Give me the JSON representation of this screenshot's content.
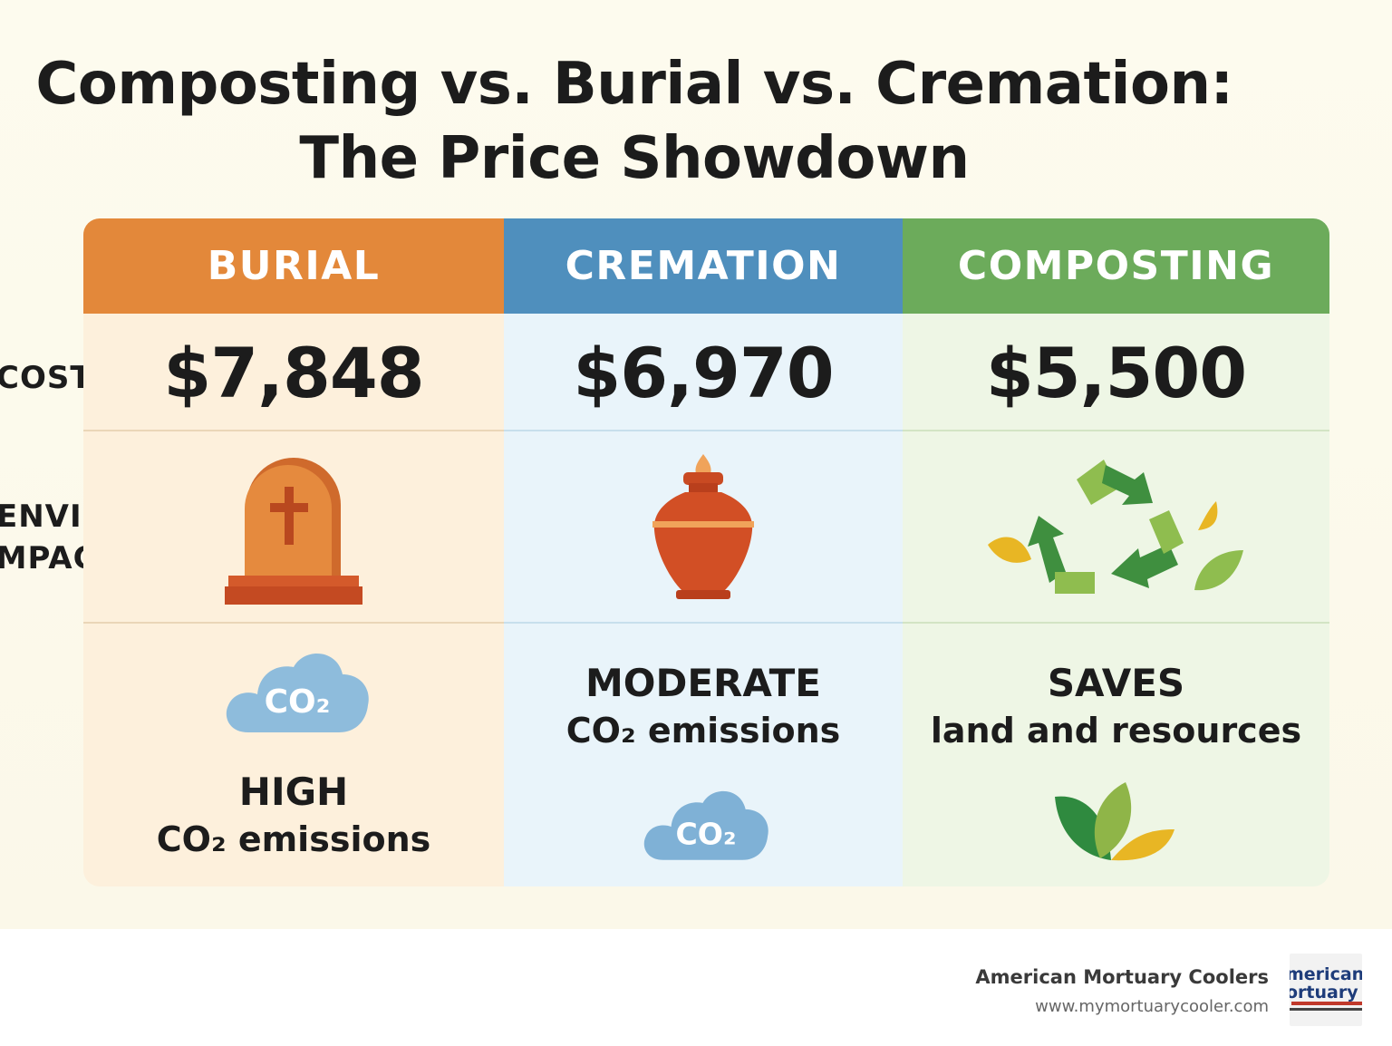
{
  "title": {
    "line1": "Composting vs. Burial vs. Cremation:",
    "line2": "The Price Showdown"
  },
  "row_labels": {
    "cost": "COST",
    "impact_line1": "ENVIRONMEN-",
    "impact_line2": "IMPACT"
  },
  "columns": [
    {
      "name": "BURIAL",
      "cost": "$7,848",
      "impact_level": "HIGH",
      "impact_text": "CO₂ emissions",
      "icon": "tombstone-icon",
      "color": "#e3883a"
    },
    {
      "name": "CREMATION",
      "cost": "$6,970",
      "impact_level": "MODERATE",
      "impact_text": "CO₂ emissions",
      "icon": "urn-icon",
      "color": "#4f8fbd"
    },
    {
      "name": "COMPOSTING",
      "cost": "$5,500",
      "impact_level": "SAVES",
      "impact_text": "land and resources",
      "icon": "recycle-icon",
      "color": "#6cab5b"
    }
  ],
  "co2_label": "CO₂",
  "footer": {
    "brand": "American Mortuary Coolers",
    "url": "www.mymortuarycooler.com",
    "logo_line1": "merican",
    "logo_line2": "ortuary"
  }
}
